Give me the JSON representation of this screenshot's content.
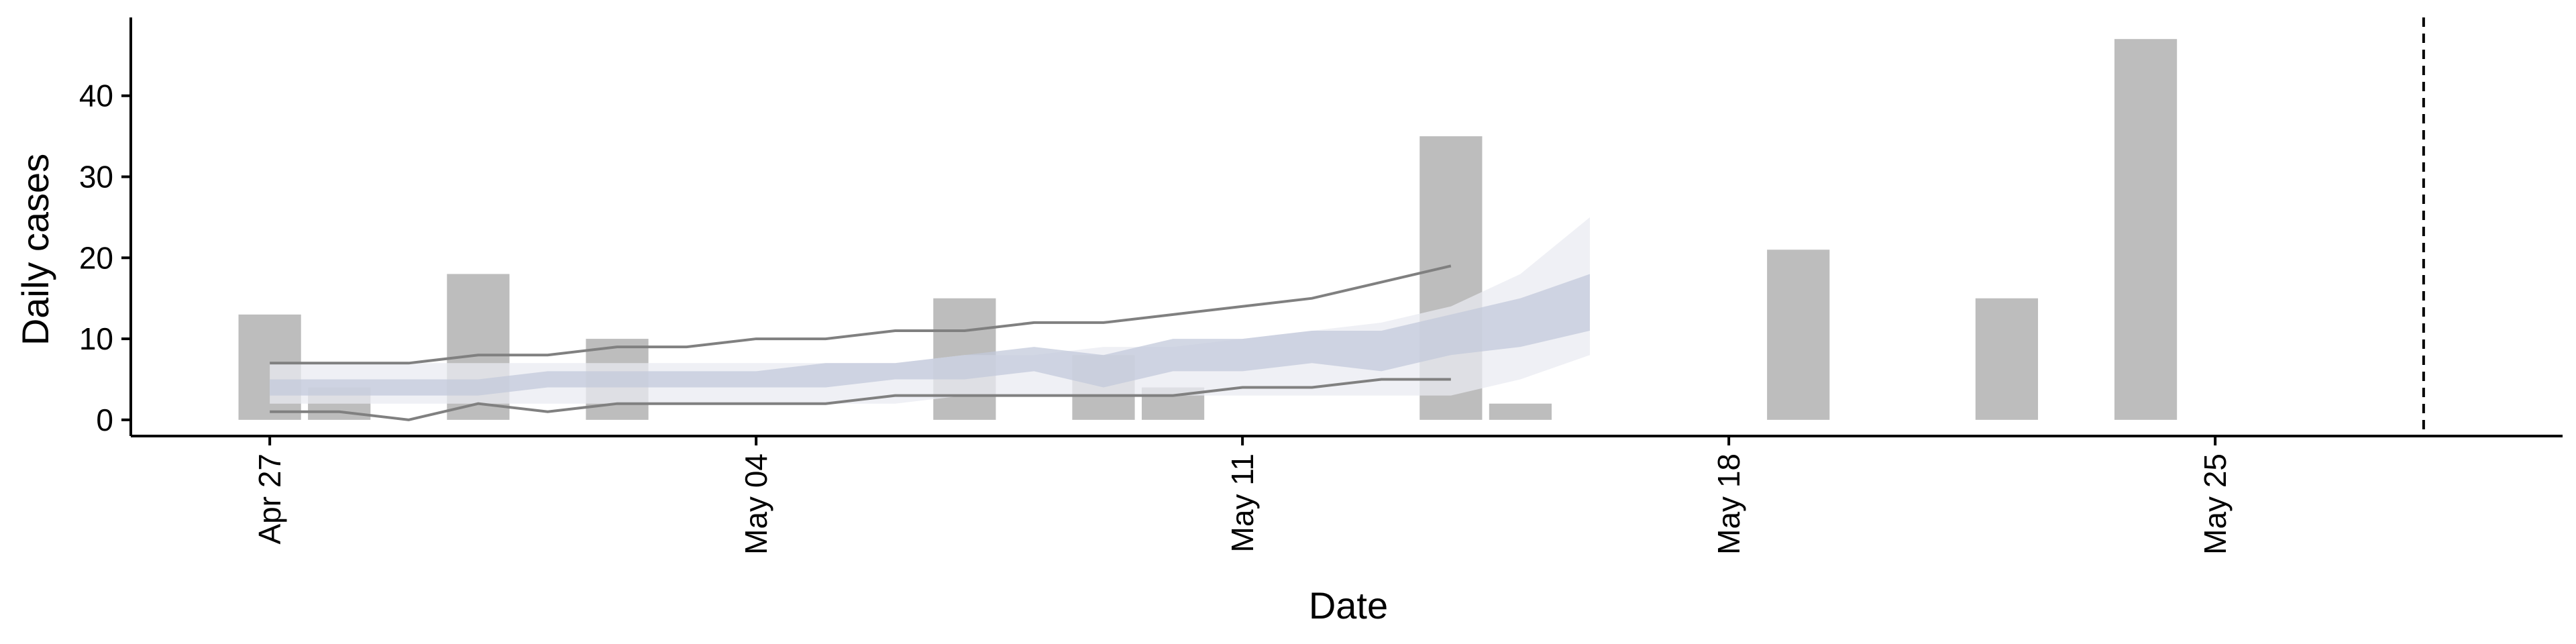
{
  "chart_data": {
    "type": "bar",
    "title": "",
    "xlabel": "Date",
    "ylabel": "Daily cases",
    "ylim": [
      -2,
      49.5
    ],
    "xlim": [
      "2020-04-25",
      "2020-05-30"
    ],
    "x_ticks": [
      {
        "date": "2020-04-27",
        "label": "Apr 27"
      },
      {
        "date": "2020-05-04",
        "label": "May 04"
      },
      {
        "date": "2020-05-11",
        "label": "May 11"
      },
      {
        "date": "2020-05-18",
        "label": "May 18"
      },
      {
        "date": "2020-05-25",
        "label": "May 25"
      }
    ],
    "y_ticks": [
      0,
      10,
      20,
      30,
      40
    ],
    "grid": false,
    "legend": "none",
    "colors": {
      "bars": "#bdbdbd",
      "ribbon_outer": "#e9ebf2",
      "ribbon_inner": "#c3c9db",
      "bounds_line": "#808080",
      "vline": "#000000"
    },
    "bars": [
      {
        "date": "2020-04-27",
        "value": 13
      },
      {
        "date": "2020-04-28",
        "value": 4
      },
      {
        "date": "2020-04-30",
        "value": 18
      },
      {
        "date": "2020-05-02",
        "value": 10
      },
      {
        "date": "2020-05-07",
        "value": 15
      },
      {
        "date": "2020-05-09",
        "value": 8
      },
      {
        "date": "2020-05-10",
        "value": 4
      },
      {
        "date": "2020-05-14",
        "value": 35
      },
      {
        "date": "2020-05-15",
        "value": 2
      },
      {
        "date": "2020-05-19",
        "value": 21
      },
      {
        "date": "2020-05-22",
        "value": 15
      },
      {
        "date": "2020-05-24",
        "value": 47
      }
    ],
    "interval_bands": {
      "x": [
        "2020-04-27",
        "2020-04-28",
        "2020-04-29",
        "2020-04-30",
        "2020-05-01",
        "2020-05-02",
        "2020-05-03",
        "2020-05-04",
        "2020-05-05",
        "2020-05-06",
        "2020-05-07",
        "2020-05-08",
        "2020-05-09",
        "2020-05-10",
        "2020-05-11",
        "2020-05-12",
        "2020-05-13",
        "2020-05-14",
        "2020-05-15",
        "2020-05-16"
      ],
      "outer_upper": [
        7,
        7,
        7,
        7,
        7,
        7,
        7,
        7,
        7,
        7,
        8,
        8,
        9,
        9,
        10,
        11,
        12,
        14,
        18,
        25
      ],
      "outer_lower": [
        2,
        2,
        2,
        2,
        2,
        2,
        2,
        2,
        2,
        2,
        3,
        3,
        3,
        3,
        3,
        3,
        3,
        3,
        5,
        8
      ],
      "inner_upper": [
        5,
        5,
        5,
        5,
        6,
        6,
        6,
        6,
        7,
        7,
        8,
        9,
        8,
        10,
        10,
        11,
        11,
        13,
        15,
        18
      ],
      "inner_lower": [
        3,
        3,
        3,
        3,
        4,
        4,
        4,
        4,
        4,
        5,
        5,
        6,
        4,
        6,
        6,
        7,
        6,
        8,
        9,
        11
      ]
    },
    "bound_lines": {
      "x": [
        "2020-04-27",
        "2020-04-28",
        "2020-04-29",
        "2020-04-30",
        "2020-05-01",
        "2020-05-02",
        "2020-05-03",
        "2020-05-04",
        "2020-05-05",
        "2020-05-06",
        "2020-05-07",
        "2020-05-08",
        "2020-05-09",
        "2020-05-10",
        "2020-05-11",
        "2020-05-12",
        "2020-05-13",
        "2020-05-14"
      ],
      "upper": [
        7,
        7,
        7,
        8,
        8,
        9,
        9,
        10,
        10,
        11,
        11,
        12,
        12,
        13,
        14,
        15,
        17,
        19
      ],
      "lower": [
        1,
        1,
        0,
        2,
        1,
        2,
        2,
        2,
        2,
        3,
        3,
        3,
        3,
        3,
        4,
        4,
        5,
        5
      ]
    },
    "vline_date": "2020-05-28"
  }
}
